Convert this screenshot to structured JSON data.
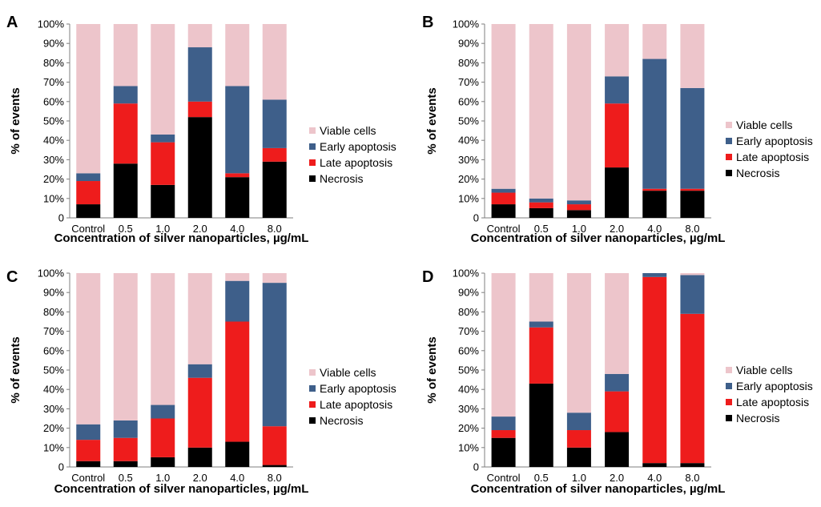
{
  "figure": {
    "legend_labels": [
      "Viable cells",
      "Early apoptosis",
      "Late apoptosis",
      "Necrosis"
    ],
    "colors": {
      "Viable cells": "#EDC5CB",
      "Early apoptosis": "#3E5F8A",
      "Late apoptosis": "#EE1C1C",
      "Necrosis": "#000000"
    }
  },
  "chart_data": [
    {
      "type": "bar",
      "stacked": true,
      "panel": "A",
      "categories": [
        "Control",
        "0.5",
        "1.0",
        "2.0",
        "4.0",
        "8.0"
      ],
      "series": [
        {
          "name": "Necrosis",
          "values": [
            7,
            28,
            17,
            52,
            21,
            29
          ]
        },
        {
          "name": "Late apoptosis",
          "values": [
            12,
            31,
            22,
            8,
            2,
            7
          ]
        },
        {
          "name": "Early apoptosis",
          "values": [
            4,
            9,
            4,
            28,
            45,
            25
          ]
        },
        {
          "name": "Viable cells",
          "values": [
            77,
            32,
            57,
            12,
            32,
            39
          ]
        }
      ],
      "xlabel": "Concentration of silver nanoparticles, µg/mL",
      "ylabel": "% of events",
      "yticks": [
        "0",
        "10%",
        "20%",
        "30%",
        "40%",
        "50%",
        "60%",
        "70%",
        "80%",
        "90%",
        "100%"
      ],
      "ylim": [
        0,
        100
      ],
      "legend": "right"
    },
    {
      "type": "bar",
      "stacked": true,
      "panel": "B",
      "categories": [
        "Control",
        "0.5",
        "1.0",
        "2.0",
        "4.0",
        "8.0"
      ],
      "series": [
        {
          "name": "Necrosis",
          "values": [
            7,
            5,
            4,
            26,
            14,
            14
          ]
        },
        {
          "name": "Late apoptosis",
          "values": [
            6,
            3,
            3,
            33,
            1,
            1
          ]
        },
        {
          "name": "Early apoptosis",
          "values": [
            2,
            2,
            2,
            14,
            67,
            52
          ]
        },
        {
          "name": "Viable cells",
          "values": [
            85,
            90,
            91,
            27,
            18,
            33
          ]
        }
      ],
      "xlabel": "Concentration of silver nanoparticles, µg/mL",
      "ylabel": "% of events",
      "yticks": [
        "0",
        "10%",
        "20%",
        "30%",
        "40%",
        "50%",
        "60%",
        "70%",
        "80%",
        "90%",
        "100%"
      ],
      "ylim": [
        0,
        100
      ],
      "legend": "right"
    },
    {
      "type": "bar",
      "stacked": true,
      "panel": "C",
      "categories": [
        "Control",
        "0.5",
        "1.0",
        "2.0",
        "4.0",
        "8.0"
      ],
      "series": [
        {
          "name": "Necrosis",
          "values": [
            3,
            3,
            5,
            10,
            13,
            1
          ]
        },
        {
          "name": "Late apoptosis",
          "values": [
            11,
            12,
            20,
            36,
            62,
            20
          ]
        },
        {
          "name": "Early apoptosis",
          "values": [
            8,
            9,
            7,
            7,
            21,
            74
          ]
        },
        {
          "name": "Viable cells",
          "values": [
            78,
            76,
            68,
            47,
            4,
            5
          ]
        }
      ],
      "xlabel": "Concentration of silver nanoparticles, µg/mL",
      "ylabel": "% of events",
      "yticks": [
        "0",
        "10%",
        "20%",
        "30%",
        "40%",
        "50%",
        "60%",
        "70%",
        "80%",
        "90%",
        "100%"
      ],
      "ylim": [
        0,
        100
      ],
      "legend": "right"
    },
    {
      "type": "bar",
      "stacked": true,
      "panel": "D",
      "categories": [
        "Control",
        "0.5",
        "1.0",
        "2.0",
        "4.0",
        "8.0"
      ],
      "series": [
        {
          "name": "Necrosis",
          "values": [
            15,
            43,
            10,
            18,
            2,
            2
          ]
        },
        {
          "name": "Late apoptosis",
          "values": [
            4,
            29,
            9,
            21,
            96,
            77
          ]
        },
        {
          "name": "Early apoptosis",
          "values": [
            7,
            3,
            9,
            9,
            2,
            20
          ]
        },
        {
          "name": "Viable cells",
          "values": [
            74,
            25,
            72,
            52,
            0,
            1
          ]
        }
      ],
      "xlabel": "Concentration of silver nanoparticles, µg/mL",
      "ylabel": "% of events",
      "yticks": [
        "0",
        "10%",
        "20%",
        "30%",
        "40%",
        "50%",
        "60%",
        "70%",
        "80%",
        "90%",
        "100%"
      ],
      "ylim": [
        0,
        100
      ],
      "legend": "right"
    }
  ]
}
